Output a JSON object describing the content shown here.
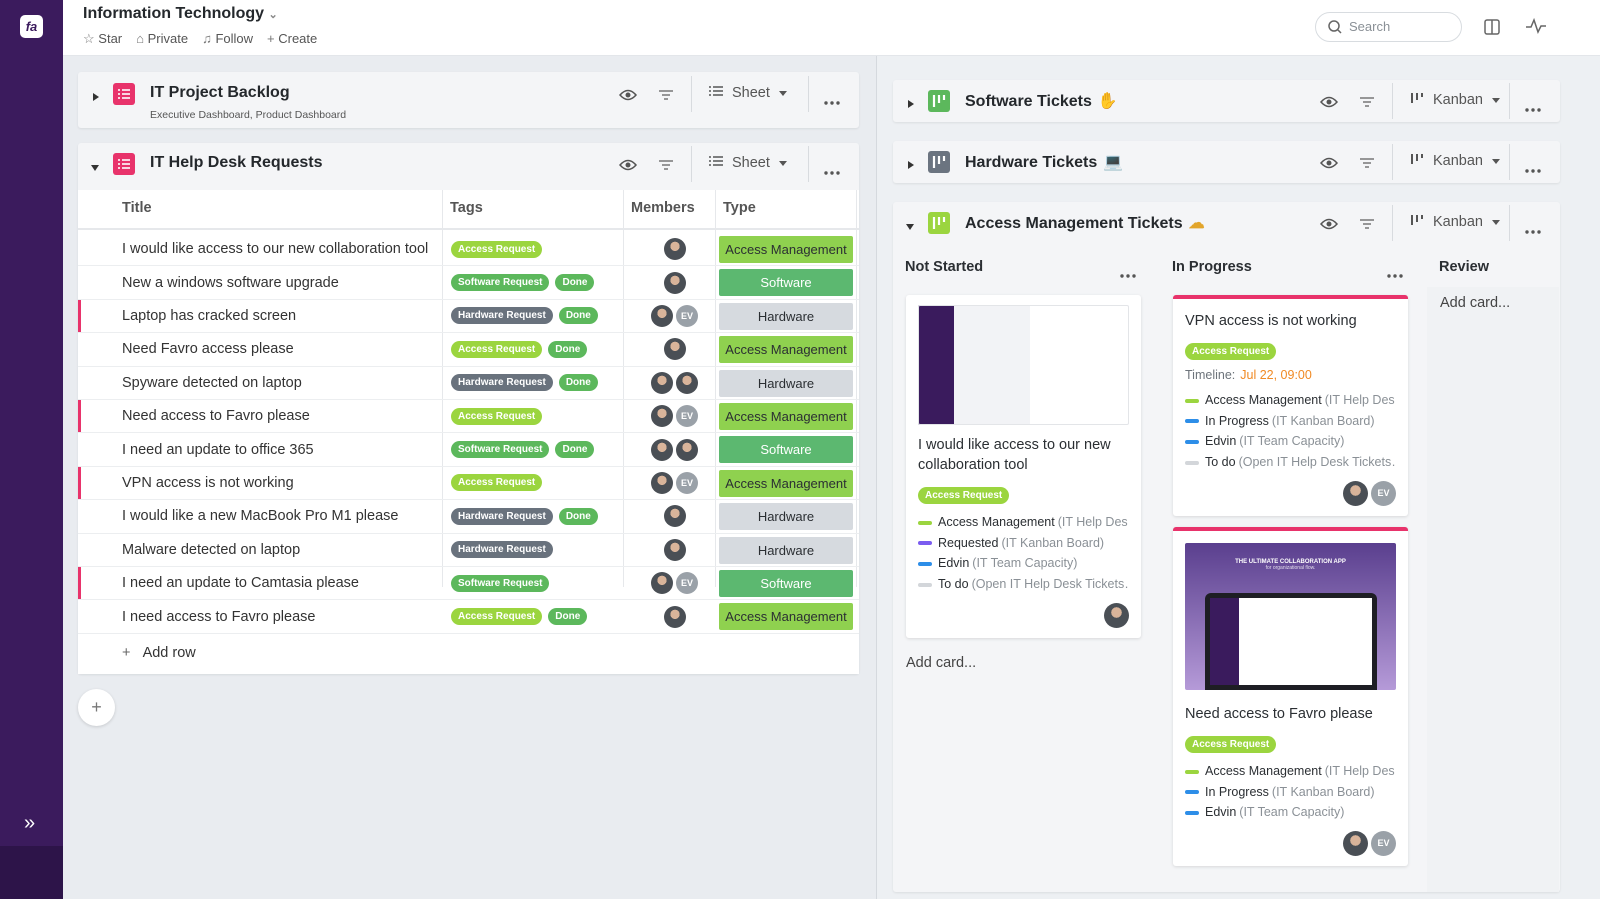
{
  "sidebar": {
    "logo": "fa"
  },
  "header": {
    "title": "Information Technology",
    "actions": [
      "Star",
      "Private",
      "Follow",
      "Create"
    ],
    "search_placeholder": "Search"
  },
  "backlog": {
    "title": "IT Project Backlog",
    "subtitle": "Executive Dashboard, Product Dashboard",
    "view": "Sheet",
    "color": "#e8336b"
  },
  "helpdesk": {
    "title": "IT Help Desk Requests",
    "view": "Sheet",
    "color": "#e8336b",
    "columns": [
      "Title",
      "Tags",
      "Members",
      "Type"
    ],
    "rows": [
      {
        "title": "I would like access to our new collaboration tool",
        "tags": [
          {
            "text": "Access Request",
            "color": "#9bd53f"
          }
        ],
        "members": [],
        "type": "Access Management",
        "type_color": "#8fd14f",
        "flag": false
      },
      {
        "title": "New a windows software upgrade",
        "tags": [
          {
            "text": "Software Request",
            "color": "#5cb85c"
          },
          {
            "text": "Done",
            "color": "#5cb85c"
          }
        ],
        "members": [],
        "type": "Software",
        "type_color": "#5cb870",
        "flag": false
      },
      {
        "title": "Laptop has cracked screen",
        "tags": [
          {
            "text": "Hardware Request",
            "color": "#69727d"
          },
          {
            "text": "Done",
            "color": "#5cb85c"
          }
        ],
        "members": [
          "EV"
        ],
        "type": "Hardware",
        "type_color": "#d6dadf",
        "flag": true
      },
      {
        "title": "Need Favro access please",
        "tags": [
          {
            "text": "Access Request",
            "color": "#9bd53f"
          },
          {
            "text": "Done",
            "color": "#5cb85c"
          }
        ],
        "members": [],
        "type": "Access Management",
        "type_color": "#8fd14f",
        "flag": false
      },
      {
        "title": "Spyware detected on laptop",
        "tags": [
          {
            "text": "Hardware Request",
            "color": "#69727d"
          },
          {
            "text": "Done",
            "color": "#5cb85c"
          }
        ],
        "members": [],
        "type": "Hardware",
        "type_color": "#d6dadf",
        "flag": false
      },
      {
        "title": "Need access to Favro please",
        "tags": [
          {
            "text": "Access Request",
            "color": "#9bd53f"
          }
        ],
        "members": [
          "EV"
        ],
        "type": "Access Management",
        "type_color": "#8fd14f",
        "flag": true
      },
      {
        "title": "I need an update to office 365",
        "tags": [
          {
            "text": "Software Request",
            "color": "#5cb85c"
          },
          {
            "text": "Done",
            "color": "#5cb85c"
          }
        ],
        "members": [],
        "type": "Software",
        "type_color": "#5cb870",
        "flag": false
      },
      {
        "title": "VPN access is not working",
        "tags": [
          {
            "text": "Access Request",
            "color": "#9bd53f"
          }
        ],
        "members": [
          "EV"
        ],
        "type": "Access Management",
        "type_color": "#8fd14f",
        "flag": true
      },
      {
        "title": "I would like a new MacBook Pro M1 please",
        "tags": [
          {
            "text": "Hardware Request",
            "color": "#69727d"
          },
          {
            "text": "Done",
            "color": "#5cb85c"
          }
        ],
        "members": [],
        "type": "Hardware",
        "type_color": "#d6dadf",
        "flag": false
      },
      {
        "title": "Malware detected on laptop",
        "tags": [
          {
            "text": "Hardware Request",
            "color": "#69727d"
          }
        ],
        "members": [],
        "type": "Hardware",
        "type_color": "#d6dadf",
        "flag": false
      },
      {
        "title": "I need an update to Camtasia please",
        "tags": [
          {
            "text": "Software Request",
            "color": "#5cb85c"
          }
        ],
        "members": [
          "EV"
        ],
        "type": "Software",
        "type_color": "#5cb870",
        "flag": true
      },
      {
        "title": "I need access to Favro please",
        "tags": [
          {
            "text": "Access Request",
            "color": "#9bd53f"
          },
          {
            "text": "Done",
            "color": "#5cb85c"
          }
        ],
        "members": [],
        "type": "Access Management",
        "type_color": "#8fd14f",
        "flag": false
      }
    ],
    "add_row": "Add row"
  },
  "kanbans": [
    {
      "title": "Software Tickets",
      "emoji": "✋",
      "view": "Kanban",
      "color": "#5cb85c"
    },
    {
      "title": "Hardware Tickets",
      "emoji": "💻",
      "view": "Kanban",
      "color": "#6b7480"
    },
    {
      "title": "Access Management Tickets",
      "emoji": "☁",
      "view": "Kanban",
      "color": "#9bd53f"
    }
  ],
  "board": {
    "columns": [
      {
        "name": "Not Started",
        "add_card": "Add card...",
        "cards": [
          {
            "title": "I would like access to our new collaboration tool",
            "tag": {
              "text": "Access Request",
              "color": "#9bd53f"
            },
            "relations": [
              {
                "name": "Access Management",
                "source": "(IT Help Des…",
                "color": "#9bd53f"
              },
              {
                "name": "Requested",
                "source": "(IT Kanban Board)",
                "color": "#7b5cf0"
              },
              {
                "name": "Edvin",
                "source": "(IT Team Capacity)",
                "color": "#2d8ee8"
              },
              {
                "name": "To do",
                "source": "(Open IT Help Desk Tickets…",
                "color": "#d3d6da"
              }
            ],
            "members": []
          }
        ]
      },
      {
        "name": "In Progress",
        "cards": [
          {
            "title": "VPN access is not working",
            "accent": "#e8336b",
            "tag": {
              "text": "Access Request",
              "color": "#9bd53f"
            },
            "timeline_label": "Timeline:",
            "timeline": "Jul 22, 09:00",
            "relations": [
              {
                "name": "Access Management",
                "source": "(IT Help Des…",
                "color": "#9bd53f"
              },
              {
                "name": "In Progress",
                "source": "(IT Kanban Board)",
                "color": "#2d8ee8"
              },
              {
                "name": "Edvin",
                "source": "(IT Team Capacity)",
                "color": "#2d8ee8"
              },
              {
                "name": "To do",
                "source": "(Open IT Help Desk Tickets…",
                "color": "#d3d6da"
              }
            ],
            "members": [
              "EV"
            ]
          },
          {
            "title": "Need access to Favro please",
            "accent": "#e8336b",
            "image_title": "THE ULTIMATE COLLABORATION APP",
            "image_subtitle": "for organizational flow.",
            "tag": {
              "text": "Access Request",
              "color": "#9bd53f"
            },
            "relations": [
              {
                "name": "Access Management",
                "source": "(IT Help Des…",
                "color": "#9bd53f"
              },
              {
                "name": "In Progress",
                "source": "(IT Kanban Board)",
                "color": "#2d8ee8"
              },
              {
                "name": "Edvin",
                "source": "(IT Team Capacity)",
                "color": "#2d8ee8"
              }
            ],
            "members": [
              "EV"
            ]
          }
        ]
      },
      {
        "name": "Review",
        "add_card": "Add card...",
        "cards": []
      }
    ]
  }
}
